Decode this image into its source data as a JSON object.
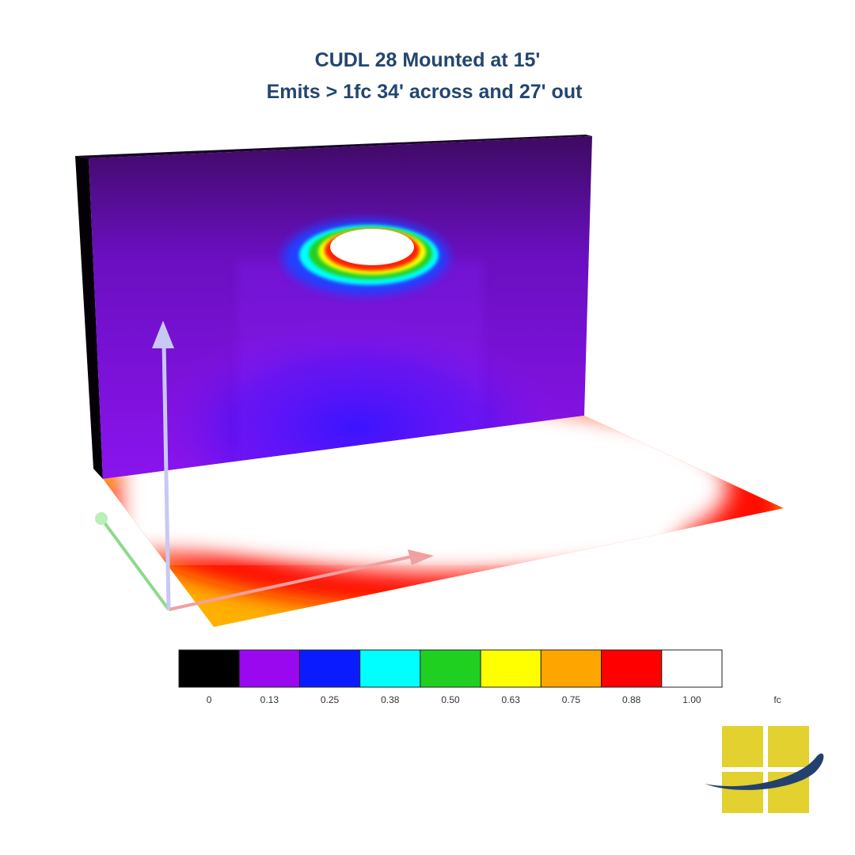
{
  "title": [
    "CUDL 28 Mounted at 15'",
    "Emits > 1fc 34' across and 27' out"
  ],
  "legend": {
    "unit": "fc",
    "items": [
      {
        "label": "0",
        "color": "#000000"
      },
      {
        "label": "0.13",
        "color": "#9a08f0"
      },
      {
        "label": "0.25",
        "color": "#0a1cff"
      },
      {
        "label": "0.38",
        "color": "#00ffff"
      },
      {
        "label": "0.50",
        "color": "#20d020"
      },
      {
        "label": "0.63",
        "color": "#ffff00"
      },
      {
        "label": "0.75",
        "color": "#ffa500"
      },
      {
        "label": "0.88",
        "color": "#ff0000"
      },
      {
        "label": "1.00",
        "color": "#ffffff"
      }
    ]
  }
}
